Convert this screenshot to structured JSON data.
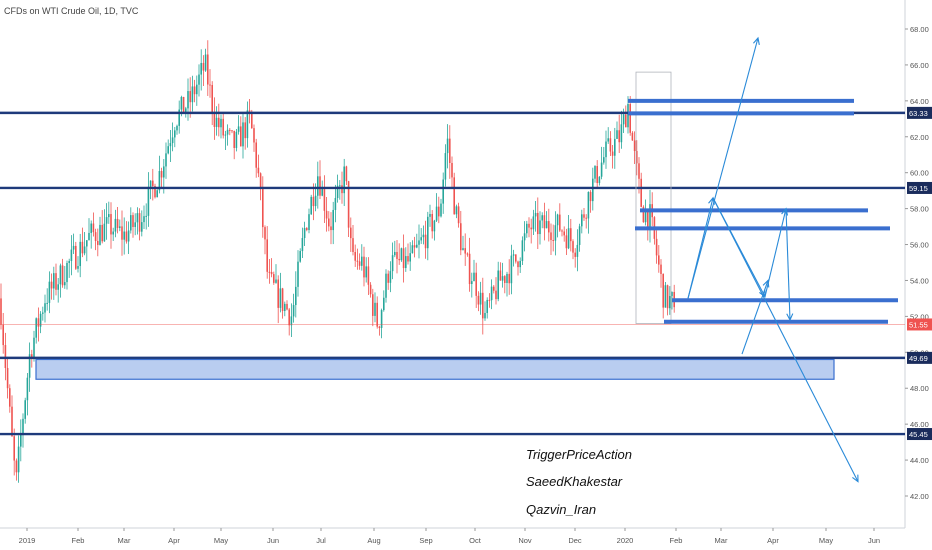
{
  "header": {
    "title": "CFDs on WTI Crude Oil, 1D, TVC"
  },
  "chart_data": {
    "type": "candlestick",
    "symbol": "CFDs on WTI Crude Oil",
    "interval": "1D",
    "source": "TVC",
    "y_axis": {
      "ticks": [
        "42.00",
        "44.00",
        "46.00",
        "48.00",
        "50.00",
        "52.00",
        "54.00",
        "56.00",
        "58.00",
        "60.00",
        "62.00",
        "64.00",
        "66.00",
        "68.00"
      ],
      "range": [
        41,
        69
      ]
    },
    "x_axis": {
      "ticks": [
        "2019",
        "Feb",
        "Mar",
        "Apr",
        "May",
        "Jun",
        "Jul",
        "Aug",
        "Sep",
        "Oct",
        "Nov",
        "Dec",
        "2020",
        "Feb",
        "Mar",
        "Apr",
        "May",
        "Jun"
      ]
    },
    "price_levels": [
      {
        "value": 63.33,
        "label": "63.33"
      },
      {
        "value": 59.15,
        "label": "59.15"
      },
      {
        "value": 49.69,
        "label": "49.69"
      },
      {
        "value": 45.45,
        "label": "45.45"
      }
    ],
    "last_price": {
      "value": 51.55,
      "label": "51.55",
      "color": "#ef5350"
    },
    "support_zone": {
      "from": 48.5,
      "to": 49.6
    },
    "colors": {
      "up": "#26a69a",
      "down": "#ef5350",
      "levels": "#1e3a7b",
      "zones": "#3a6fcf"
    },
    "candles_approx": [
      {
        "month": "2019-01",
        "low": 42.4,
        "high": 53.3
      },
      {
        "month": "2019-02",
        "low": 51.3,
        "high": 57.3
      },
      {
        "month": "2019-03",
        "low": 55.3,
        "high": 60.7
      },
      {
        "month": "2019-04",
        "low": 60.0,
        "high": 66.6
      },
      {
        "month": "2019-05",
        "low": 52.9,
        "high": 63.8
      },
      {
        "month": "2019-06",
        "low": 50.6,
        "high": 59.0
      },
      {
        "month": "2019-07",
        "low": 54.6,
        "high": 60.9
      },
      {
        "month": "2019-08",
        "low": 50.5,
        "high": 57.9
      },
      {
        "month": "2019-09",
        "low": 52.8,
        "high": 63.3
      },
      {
        "month": "2019-10",
        "low": 50.9,
        "high": 56.9
      },
      {
        "month": "2019-11",
        "low": 55.0,
        "high": 59.0
      },
      {
        "month": "2019-12",
        "low": 55.3,
        "high": 62.3
      },
      {
        "month": "2020-01",
        "low": 51.5,
        "high": 65.6
      }
    ],
    "annotations": [
      "TriggerPriceAction",
      "SaeedKhakestar",
      "Qazvin_Iran"
    ]
  }
}
